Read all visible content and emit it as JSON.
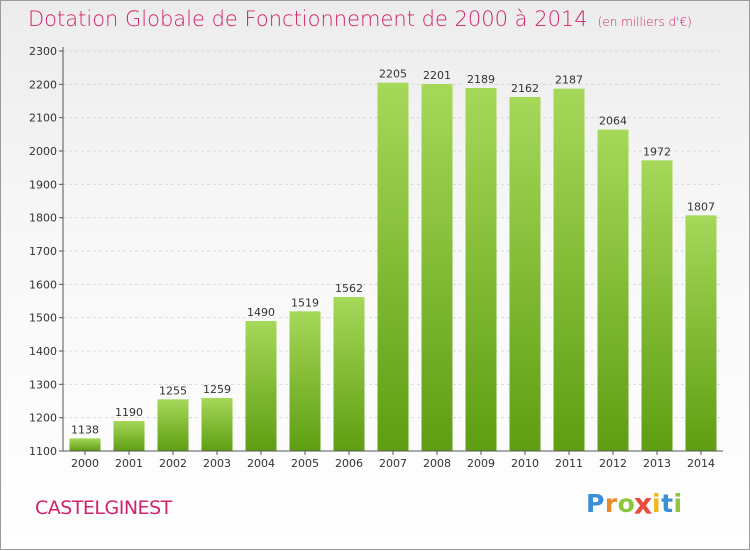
{
  "header": {
    "title": "Dotation Globale de Fonctionnement de 2000 à 2014",
    "unit": "(en milliers d'€)"
  },
  "footer": {
    "commune": "CASTELGINEST",
    "logo_letters": [
      {
        "ch": "P",
        "color": "#3a8fd6"
      },
      {
        "ch": "r",
        "color": "#e8892a"
      },
      {
        "ch": "o",
        "color": "#8cc63f"
      },
      {
        "ch": "x",
        "color": "#e94b3c"
      },
      {
        "ch": "i",
        "color": "#f2b61a"
      },
      {
        "ch": "t",
        "color": "#3a8fd6"
      },
      {
        "ch": "i",
        "color": "#8cc63f"
      }
    ]
  },
  "colors": {
    "title": "#d1236d",
    "bar_light": "#a6d85a",
    "bar_dark": "#5e9e12",
    "grid": "#d8d8d8",
    "axis": "#555555"
  },
  "chart_data": {
    "type": "bar",
    "title": "Dotation Globale de Fonctionnement de 2000 à 2014",
    "subtitle": "(en milliers d'€)",
    "xlabel": "",
    "ylabel": "",
    "categories": [
      "2000",
      "2001",
      "2002",
      "2003",
      "2004",
      "2005",
      "2006",
      "2007",
      "2008",
      "2009",
      "2010",
      "2011",
      "2012",
      "2013",
      "2014"
    ],
    "values": [
      1138,
      1190,
      1255,
      1259,
      1490,
      1519,
      1562,
      2205,
      2201,
      2189,
      2162,
      2187,
      2064,
      1972,
      1807
    ],
    "ylim": [
      1100,
      2300
    ],
    "yticks": [
      1100,
      1200,
      1300,
      1400,
      1500,
      1600,
      1700,
      1800,
      1900,
      2000,
      2100,
      2200,
      2300
    ],
    "grid": true,
    "legend": "none",
    "data_labels": true
  }
}
